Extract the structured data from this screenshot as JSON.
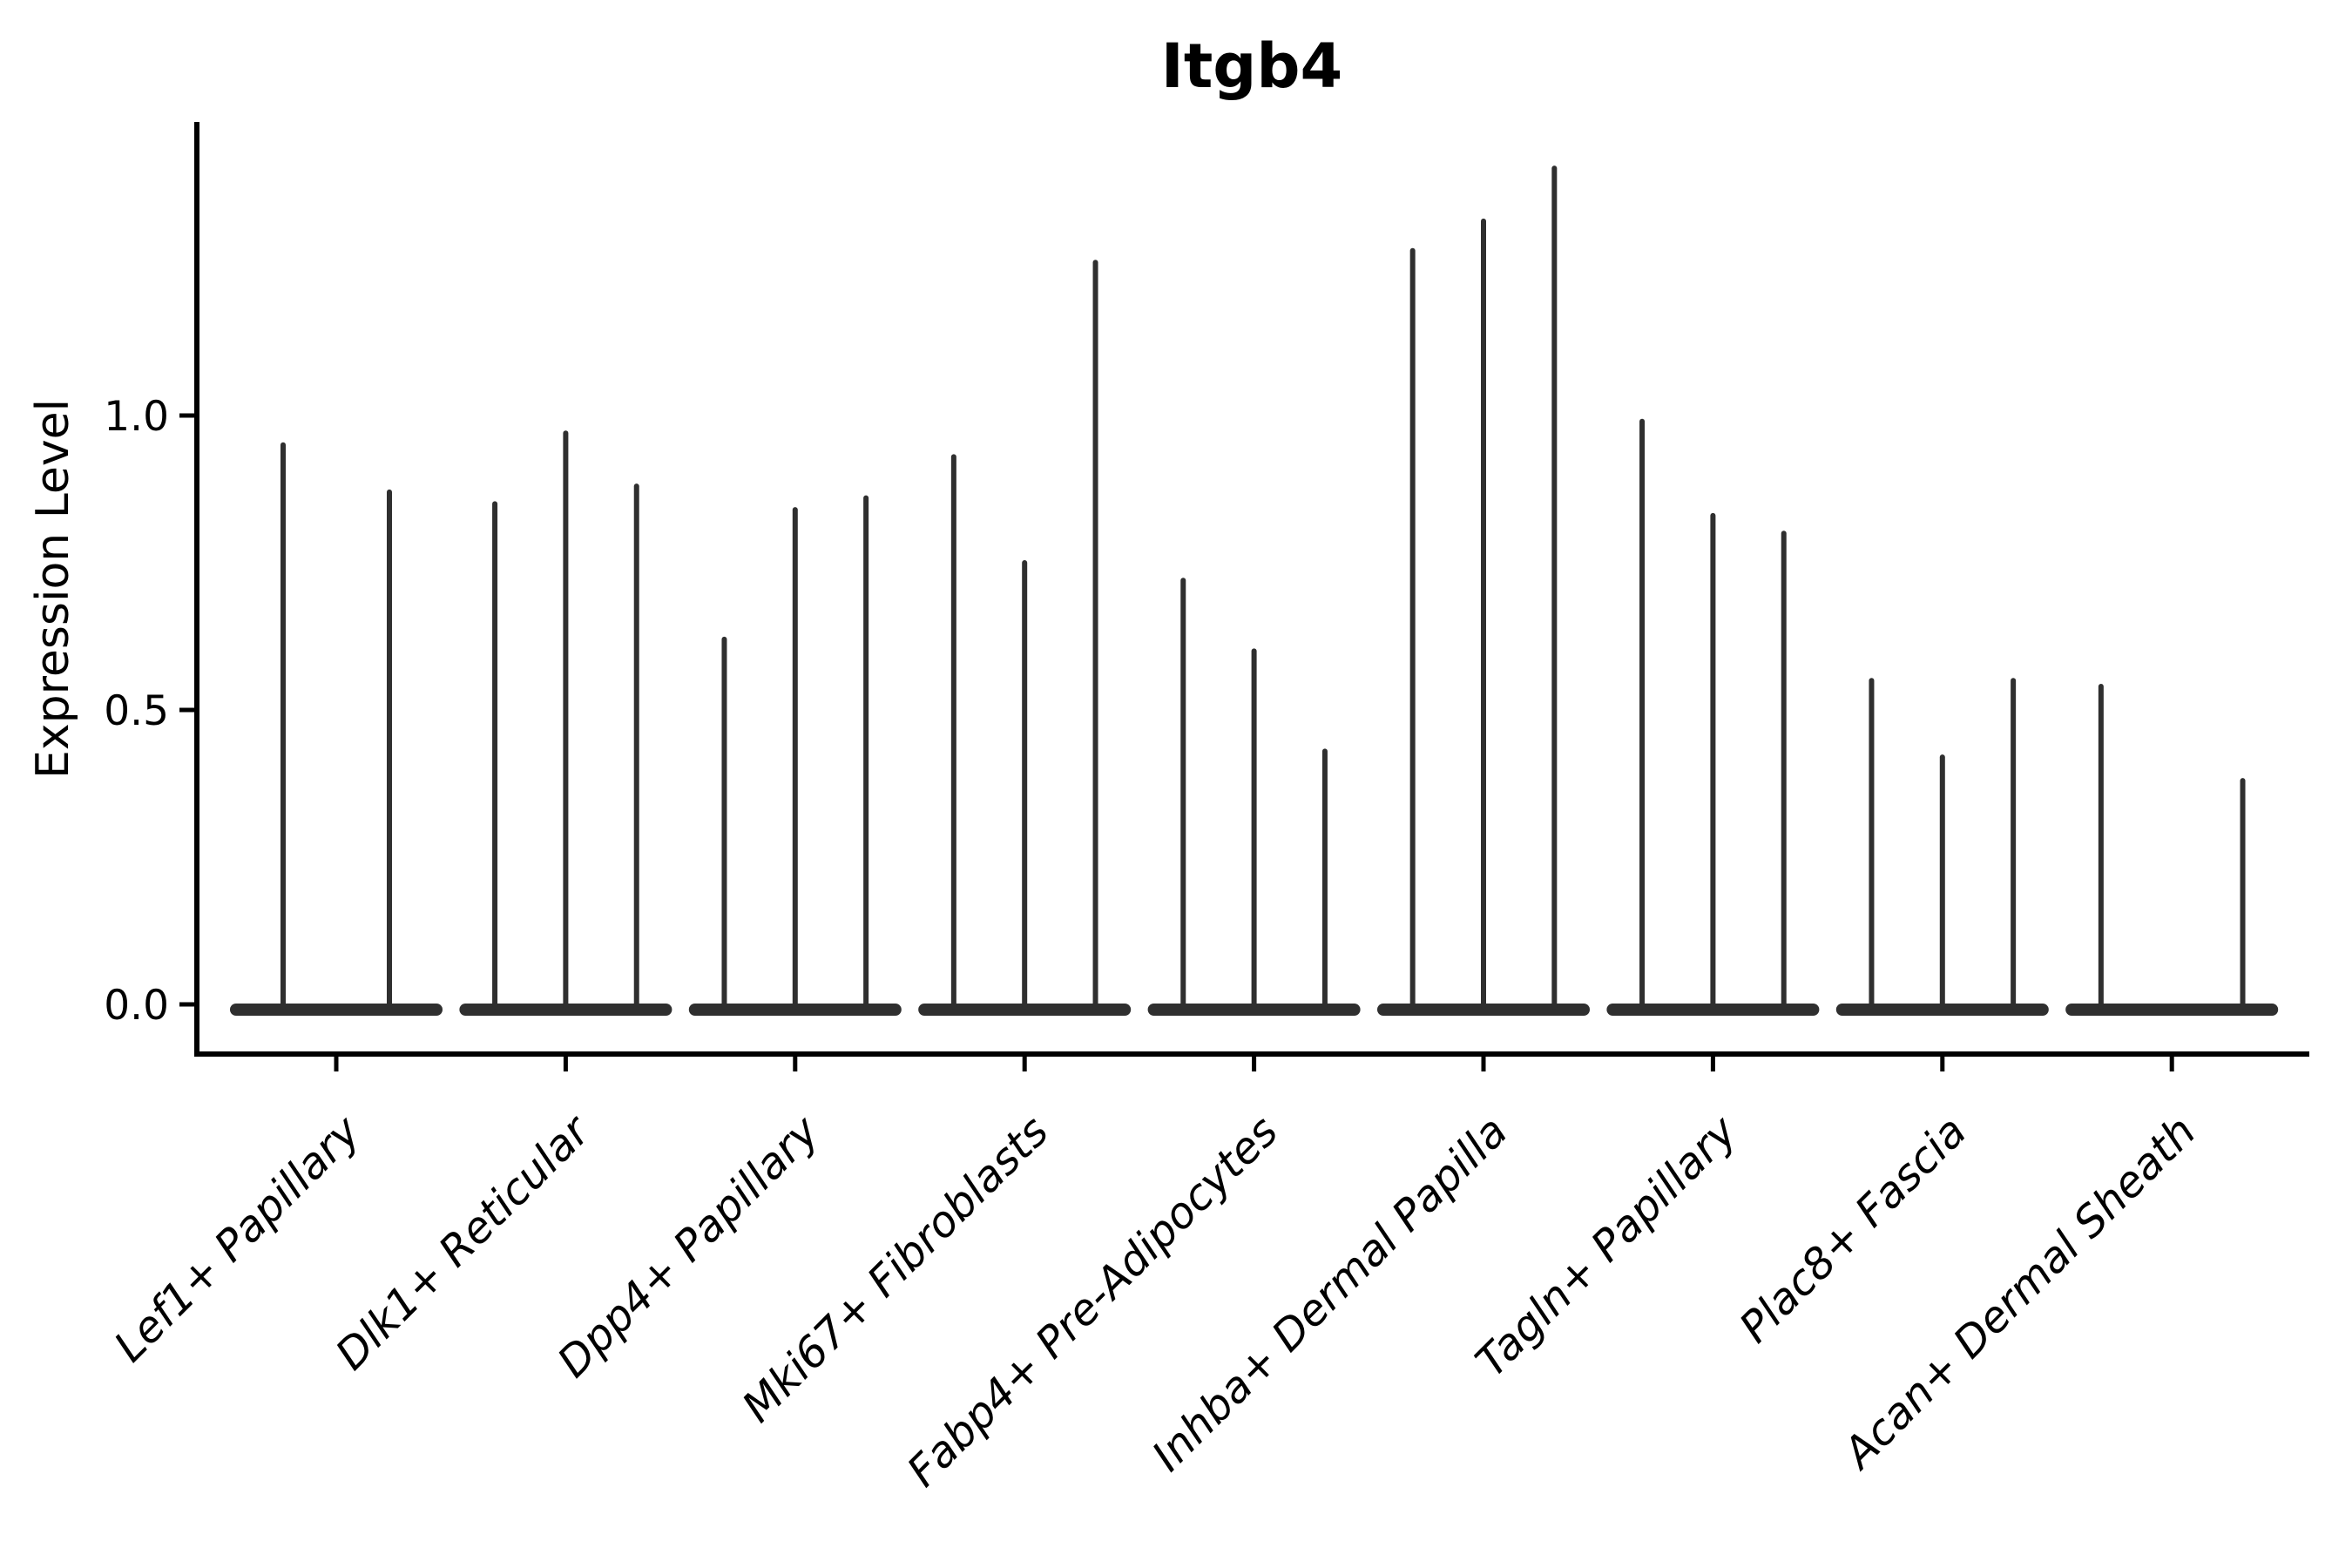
{
  "chart_data": {
    "type": "violin",
    "title": "Itgb4",
    "ylabel": "Expression Level",
    "xlabel": "",
    "grid": false,
    "legend_position": "none",
    "background_color": "#ffffff",
    "axis_color": "#000000",
    "violin_color": "#2f2f2f",
    "ylim": [
      -0.08,
      1.5
    ],
    "yticks": [
      {
        "value": 0.0,
        "label": "0.0"
      },
      {
        "value": 0.5,
        "label": "0.5"
      },
      {
        "value": 1.0,
        "label": "1.0"
      }
    ],
    "categories": [
      "Lef1+ Papillary",
      "Dlk1+ Reticular",
      "Dpp4+ Papillary",
      "Mki67+ Fibroblasts",
      "Fabp4+ Pre-Adipocytes",
      "Inhba+ Dermal Papilla",
      "Tagln+ Papillary",
      "Plac8+ Fascia",
      "Acan+ Dermal Sheath"
    ],
    "violin_style": "each violin is a wide flat density at 0 with a thin vertical tail rising to the max expression value; a value of 0 means no visible tail",
    "groups": [
      {
        "label": "Lef1+ Papillary",
        "spike_heights": [
          0.95,
          0.87
        ]
      },
      {
        "label": "Dlk1+ Reticular",
        "spike_heights": [
          0.85,
          0.97,
          0.88
        ]
      },
      {
        "label": "Dpp4+ Papillary",
        "spike_heights": [
          0.62,
          0.84,
          0.86
        ]
      },
      {
        "label": "Mki67+ Fibroblasts",
        "spike_heights": [
          0.93,
          0.75,
          1.26
        ]
      },
      {
        "label": "Fabp4+ Pre-Adipocytes",
        "spike_heights": [
          0.72,
          0.6,
          0.43
        ]
      },
      {
        "label": "Inhba+ Dermal Papilla",
        "spike_heights": [
          1.28,
          1.33,
          1.42
        ]
      },
      {
        "label": "Tagln+ Papillary",
        "spike_heights": [
          0.99,
          0.83,
          0.8
        ]
      },
      {
        "label": "Plac8+ Fascia",
        "spike_heights": [
          0.55,
          0.42,
          0.55
        ]
      },
      {
        "label": "Acan+ Dermal Sheath",
        "spike_heights": [
          0.54,
          0.0,
          0.38
        ]
      }
    ]
  }
}
